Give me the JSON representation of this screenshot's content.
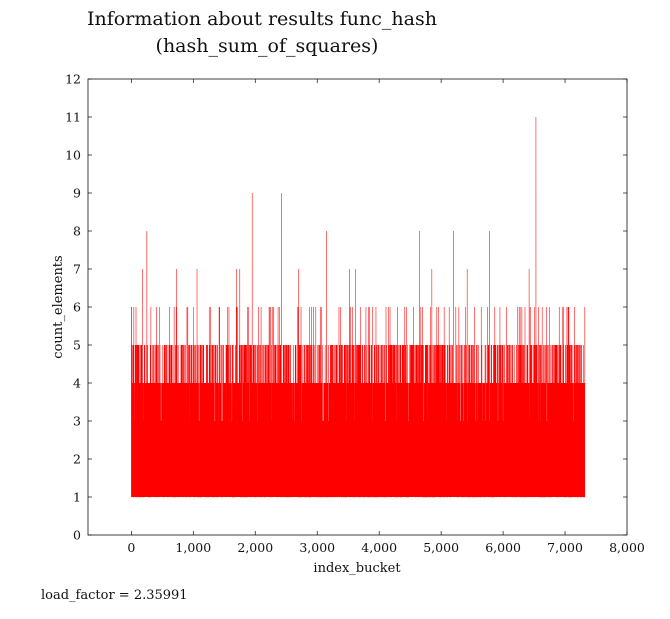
{
  "chart_data": {
    "type": "bar",
    "title_lines": [
      "Information about results func_hash",
      "(hash_sum_of_squares)"
    ],
    "xlabel": "index_bucket",
    "ylabel": "count_elements",
    "xlim": [
      -700,
      8000
    ],
    "ylim": [
      0,
      12
    ],
    "xticks": [
      0,
      1000,
      2000,
      3000,
      4000,
      5000,
      6000,
      7000,
      8000
    ],
    "xtick_labels": [
      "0",
      "1,000",
      "2,000",
      "3,000",
      "4,000",
      "5,000",
      "6,000",
      "7,000",
      "8,000"
    ],
    "yticks": [
      0,
      1,
      2,
      3,
      4,
      5,
      6,
      7,
      8,
      9,
      10,
      11,
      12
    ],
    "ytick_labels": [
      "0",
      "1",
      "2",
      "3",
      "4",
      "5",
      "6",
      "7",
      "8",
      "9",
      "10",
      "11",
      "12"
    ],
    "series": [
      {
        "color": "#ff0000",
        "bucket_count": 7320,
        "base_value": 1,
        "typical_max": 4,
        "peaks": [
          {
            "x": 250,
            "y": 8
          },
          {
            "x": 1950,
            "y": 9
          },
          {
            "x": 2420,
            "y": 9
          },
          {
            "x": 3150,
            "y": 8
          },
          {
            "x": 4650,
            "y": 8
          },
          {
            "x": 5200,
            "y": 8
          },
          {
            "x": 5780,
            "y": 8
          },
          {
            "x": 6530,
            "y": 11
          },
          {
            "x": 180,
            "y": 7
          },
          {
            "x": 730,
            "y": 7
          },
          {
            "x": 1060,
            "y": 7
          },
          {
            "x": 1700,
            "y": 7
          },
          {
            "x": 1750,
            "y": 7
          },
          {
            "x": 2700,
            "y": 7
          },
          {
            "x": 3520,
            "y": 7
          },
          {
            "x": 3620,
            "y": 7
          },
          {
            "x": 4850,
            "y": 7
          },
          {
            "x": 5420,
            "y": 7
          },
          {
            "x": 6420,
            "y": 7
          }
        ]
      }
    ],
    "grid": false,
    "annotation": "load_factor = 2.35991"
  }
}
